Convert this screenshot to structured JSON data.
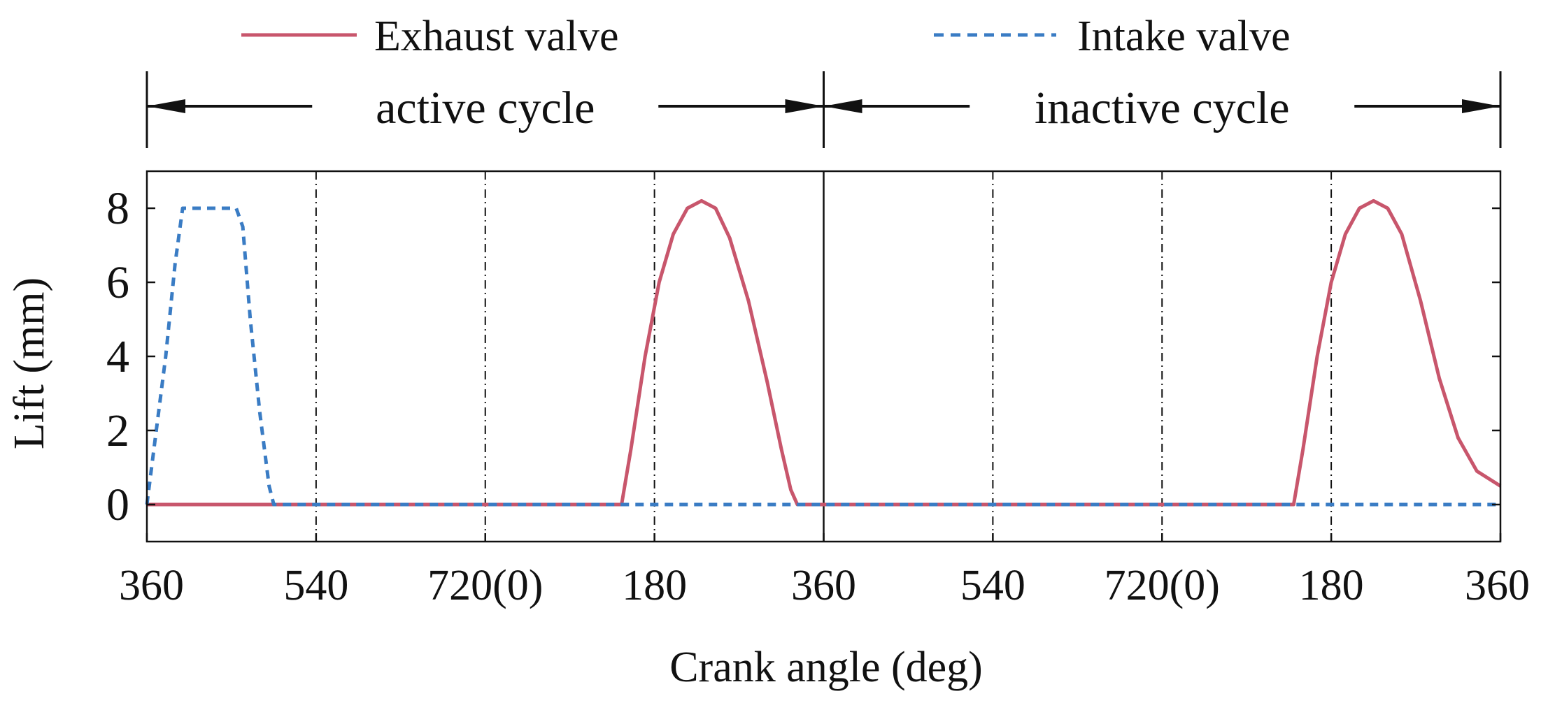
{
  "chart_data": {
    "type": "line",
    "title": "",
    "xlabel": "Crank angle (deg)",
    "ylabel": "Lift (mm)",
    "x_unit": "deg",
    "x_range_deg_continuous": [
      0,
      1440
    ],
    "ylim": [
      -1,
      9
    ],
    "y_ticks": [
      0,
      2,
      4,
      6,
      8
    ],
    "x_ticks": [
      {
        "value": 0,
        "label": "360"
      },
      {
        "value": 180,
        "label": "540"
      },
      {
        "value": 360,
        "label": "720(0)"
      },
      {
        "value": 540,
        "label": "180"
      },
      {
        "value": 720,
        "label": "360"
      },
      {
        "value": 900,
        "label": "540"
      },
      {
        "value": 1080,
        "label": "720(0)"
      },
      {
        "value": 1260,
        "label": "180"
      },
      {
        "value": 1440,
        "label": "360"
      }
    ],
    "vertical_dashdot_lines_at": [
      180,
      360,
      540,
      900,
      1080,
      1260
    ],
    "cycle_boundary_lines_at": [
      0,
      720,
      1440
    ],
    "cycle_annotations": [
      {
        "label": "active cycle",
        "from": 0,
        "to": 720
      },
      {
        "label": "inactive cycle",
        "from": 720,
        "to": 1440
      }
    ],
    "legend": {
      "placement": "top"
    },
    "series": [
      {
        "name": "Exhaust valve",
        "color": "#c8566c",
        "style": "solid",
        "points": [
          [
            0,
            0
          ],
          [
            505,
            0
          ],
          [
            515,
            1.5
          ],
          [
            530,
            4
          ],
          [
            545,
            6
          ],
          [
            560,
            7.3
          ],
          [
            575,
            8.0
          ],
          [
            590,
            8.2
          ],
          [
            605,
            8.0
          ],
          [
            620,
            7.2
          ],
          [
            640,
            5.5
          ],
          [
            660,
            3.3
          ],
          [
            675,
            1.5
          ],
          [
            685,
            0.4
          ],
          [
            692,
            0
          ],
          [
            1220,
            0
          ],
          [
            1230,
            1.5
          ],
          [
            1245,
            4
          ],
          [
            1260,
            6
          ],
          [
            1275,
            7.3
          ],
          [
            1290,
            8.0
          ],
          [
            1305,
            8.2
          ],
          [
            1320,
            8.0
          ],
          [
            1335,
            7.3
          ],
          [
            1355,
            5.5
          ],
          [
            1375,
            3.4
          ],
          [
            1395,
            1.8
          ],
          [
            1415,
            0.9
          ],
          [
            1440,
            0.5
          ]
        ]
      },
      {
        "name": "Intake valve",
        "color": "#3a7cc4",
        "style": "dashed",
        "points": [
          [
            0,
            0
          ],
          [
            10,
            2
          ],
          [
            20,
            4
          ],
          [
            30,
            6.5
          ],
          [
            38,
            8
          ],
          [
            95,
            8
          ],
          [
            102,
            7.5
          ],
          [
            110,
            5
          ],
          [
            120,
            2.5
          ],
          [
            130,
            0.5
          ],
          [
            135,
            0
          ],
          [
            1440,
            0
          ]
        ]
      }
    ]
  },
  "colors": {
    "exhaust": "#c8566c",
    "intake": "#3a7cc4",
    "axis": "#111111"
  }
}
